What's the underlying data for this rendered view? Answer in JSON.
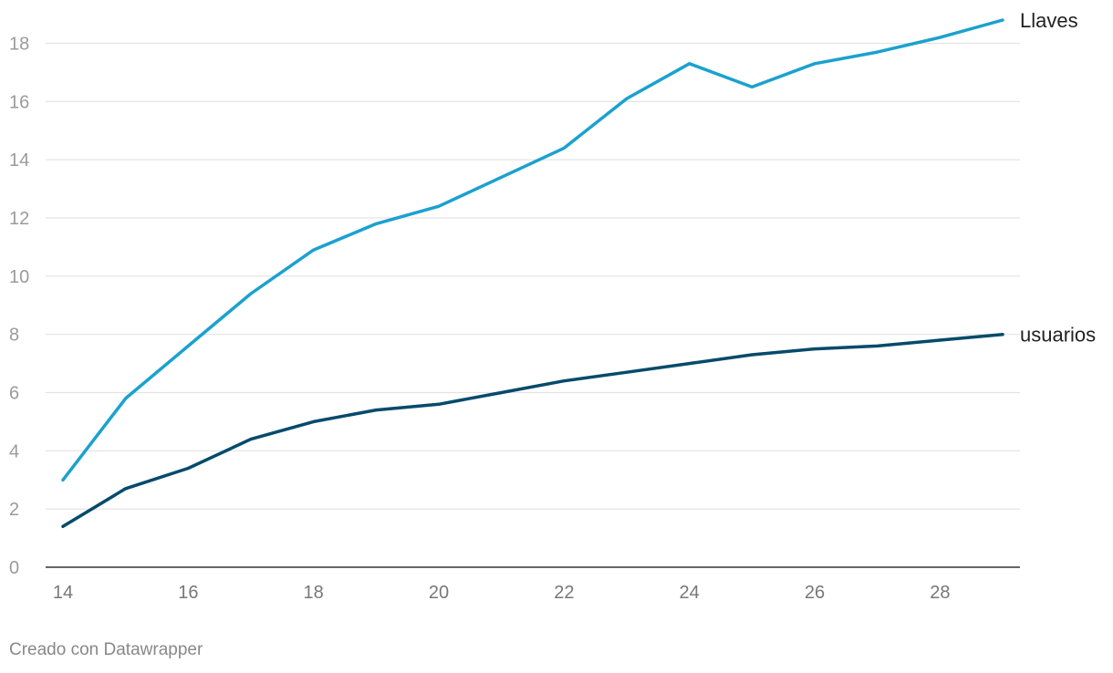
{
  "chart_data": {
    "type": "line",
    "x": [
      14,
      15,
      16,
      17,
      18,
      19,
      20,
      21,
      22,
      23,
      24,
      25,
      26,
      27,
      28,
      29
    ],
    "series": [
      {
        "name": "Llaves",
        "color": "#1ba1cf",
        "values": [
          3.0,
          5.8,
          7.6,
          9.4,
          10.9,
          11.8,
          12.4,
          13.4,
          14.4,
          16.1,
          17.3,
          16.5,
          17.3,
          17.7,
          18.2,
          18.8
        ]
      },
      {
        "name": "usuarios",
        "color": "#044a6b",
        "values": [
          1.4,
          2.7,
          3.4,
          4.4,
          5.0,
          5.4,
          5.6,
          6.0,
          6.4,
          6.7,
          7.0,
          7.3,
          7.5,
          7.6,
          7.8,
          8.0
        ]
      }
    ],
    "x_ticks": [
      "14",
      "16",
      "18",
      "20",
      "22",
      "24",
      "26",
      "28"
    ],
    "y_ticks": [
      "0",
      "2",
      "4",
      "6",
      "8",
      "10",
      "12",
      "14",
      "16",
      "18"
    ],
    "xlim": [
      14,
      29
    ],
    "ylim": [
      0,
      18
    ],
    "grid": true,
    "legend": "direct labels at line ends"
  },
  "footer": {
    "credit": "Creado con Datawrapper"
  }
}
